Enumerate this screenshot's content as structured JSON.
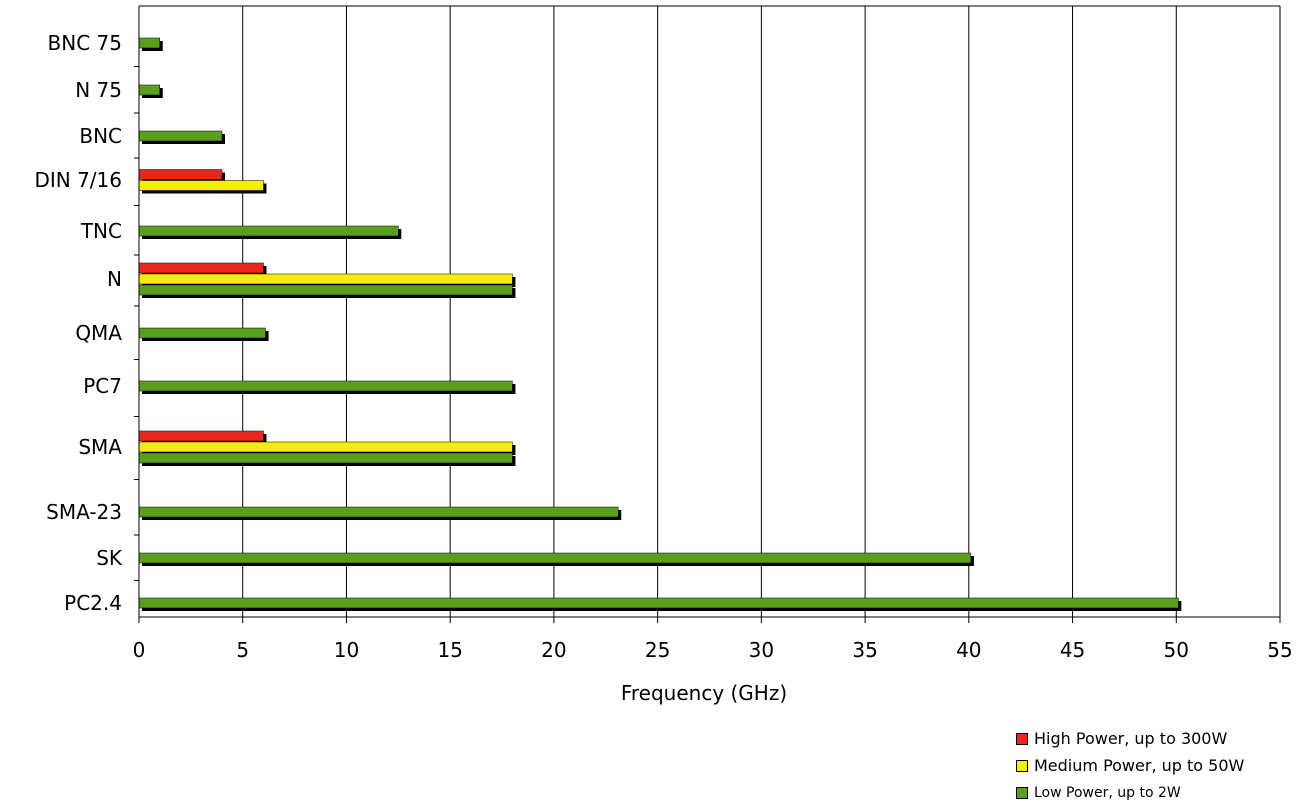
{
  "chart_data": {
    "type": "bar",
    "orientation": "horizontal",
    "xlabel": "Frequency (GHz)",
    "xlim": [
      0,
      55
    ],
    "xticks": [
      0,
      5,
      10,
      15,
      20,
      25,
      30,
      35,
      40,
      45,
      50,
      55
    ],
    "grid": true,
    "categories": [
      "BNC 75",
      "N 75",
      "BNC",
      "DIN 7/16",
      "TNC",
      "N",
      "QMA",
      "PC7",
      "SMA",
      "SMA-23",
      "SK",
      "PC2.4"
    ],
    "series": [
      {
        "name": "High Power, up to 300W",
        "color": "#e8281e",
        "values": [
          null,
          null,
          null,
          4,
          null,
          6,
          null,
          null,
          6,
          null,
          null,
          null
        ]
      },
      {
        "name": "Medium Power, up to 50W",
        "color": "#f7ec0b",
        "values": [
          null,
          null,
          null,
          6,
          null,
          18,
          null,
          null,
          18,
          null,
          null,
          null
        ]
      },
      {
        "name": "Low Power, up to 2W",
        "color": "#5a9e1e",
        "values": [
          1,
          1,
          4,
          null,
          12.5,
          18,
          6.1,
          18,
          18,
          23.1,
          40.1,
          50.1
        ]
      }
    ],
    "legend_position": "bottom-right"
  }
}
